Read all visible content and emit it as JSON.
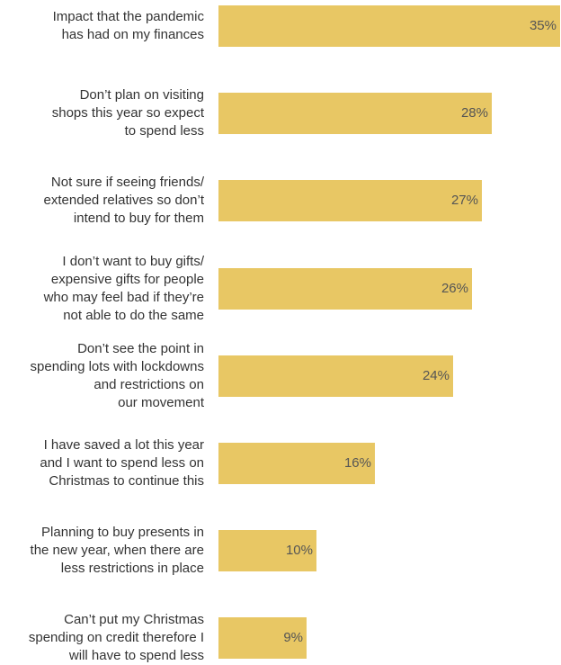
{
  "chart_data": {
    "type": "bar",
    "orientation": "horizontal",
    "categories": [
      [
        "Impact that the pandemic",
        "has had on my finances"
      ],
      [
        "Don’t plan on visiting",
        "shops this year so expect",
        "to spend less"
      ],
      [
        "Not sure if seeing friends/",
        "extended relatives so don’t",
        "intend to buy for them"
      ],
      [
        "I don’t want to buy gifts/",
        "expensive gifts for people",
        "who may feel bad if they’re",
        "not able to do the same"
      ],
      [
        "Don’t see the point in",
        "spending lots with lockdowns",
        "and restrictions on",
        "our movement"
      ],
      [
        "I have saved a lot this year",
        "and I want to spend less on",
        "Christmas to continue this"
      ],
      [
        "Planning to buy presents in",
        "the new year, when there are",
        "less restrictions in place"
      ],
      [
        "Can’t put my Christmas",
        "spending on credit therefore I",
        "will have to spend less"
      ]
    ],
    "values": [
      35,
      28,
      27,
      26,
      24,
      16,
      10,
      9
    ],
    "value_labels": [
      "35%",
      "28%",
      "27%",
      "26%",
      "24%",
      "16%",
      "10%",
      "9%"
    ],
    "unit": "%",
    "xlim": [
      0,
      35
    ],
    "grid": false,
    "legend": "none",
    "bar_color": "#e8c764"
  }
}
